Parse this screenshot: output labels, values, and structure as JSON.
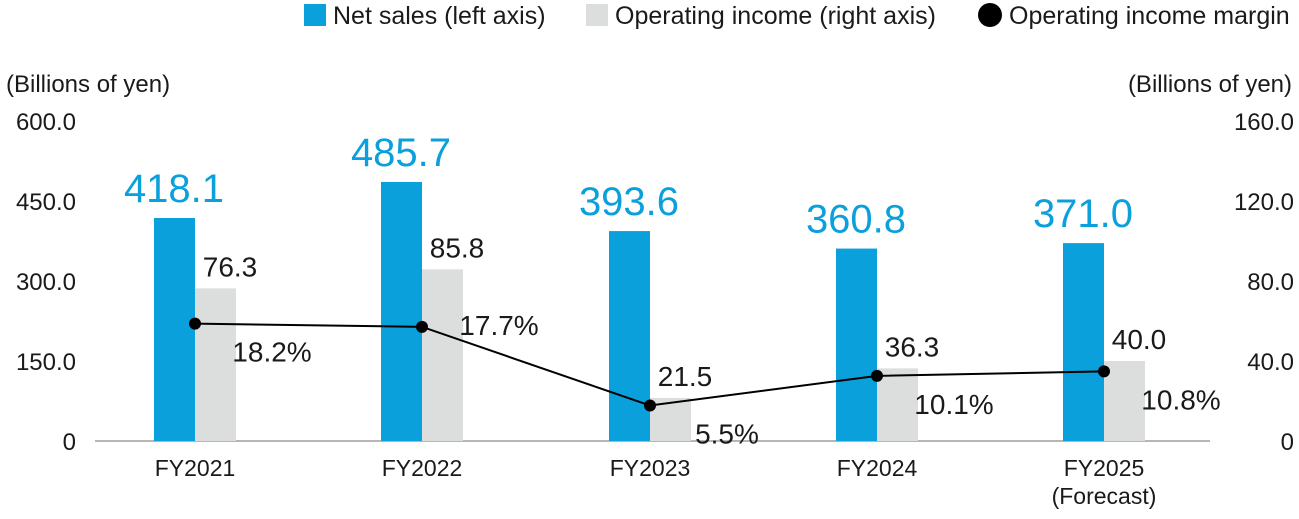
{
  "chart_data": {
    "type": "bar",
    "categories": [
      "FY2021",
      "FY2022",
      "FY2023",
      "FY2024",
      "FY2025"
    ],
    "category_sublabels": [
      "",
      "",
      "",
      "",
      "(Forecast)"
    ],
    "left_axis": {
      "unit_label": "(Billions of yen)",
      "ylim": [
        0,
        600
      ],
      "ticks": [
        "0",
        "150.0",
        "300.0",
        "450.0",
        "600.0"
      ]
    },
    "right_axis": {
      "unit_label": "(Billions of yen)",
      "ylim": [
        0,
        160
      ],
      "ticks": [
        "0",
        "40.0",
        "80.0",
        "120.0",
        "160.0"
      ]
    },
    "series": [
      {
        "name": "Net sales (left axis)",
        "type": "bar",
        "axis": "left",
        "color": "#0aa0dc",
        "values": [
          418.1,
          485.7,
          393.6,
          360.8,
          371.0
        ],
        "labels": [
          "418.1",
          "485.7",
          "393.6",
          "360.8",
          "371.0"
        ]
      },
      {
        "name": "Operating income (right axis)",
        "type": "bar",
        "axis": "right",
        "color": "#dcdddd",
        "values": [
          76.3,
          85.8,
          21.5,
          36.3,
          40.0
        ],
        "labels": [
          "76.3",
          "85.8",
          "21.5",
          "36.3",
          "40.0"
        ]
      },
      {
        "name": "Operating income margin",
        "type": "line",
        "color": "#000000",
        "values": [
          18.2,
          17.7,
          5.5,
          10.1,
          10.8
        ],
        "labels": [
          "18.2%",
          "17.7%",
          "5.5%",
          "10.1%",
          "10.8%"
        ]
      }
    ],
    "legend_position": "top-right",
    "grid": false
  }
}
